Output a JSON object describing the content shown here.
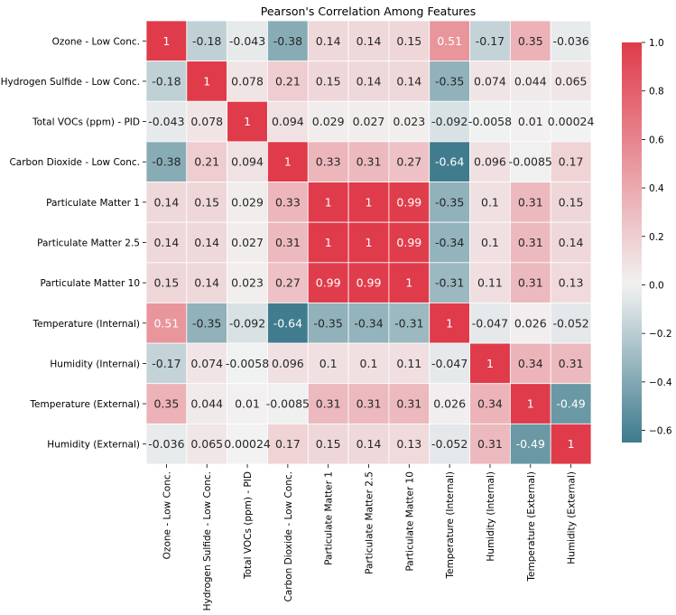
{
  "chart_data": {
    "type": "heatmap",
    "title": "Pearson's Correlation Among Features",
    "xlabel": "",
    "ylabel": "",
    "labels": [
      "Ozone - Low Conc.",
      "Hydrogen Sulfide - Low Conc.",
      "Total VOCs (ppm) - PID",
      "Carbon Dioxide - Low Conc.",
      "Particulate Matter 1",
      "Particulate Matter 2.5",
      "Particulate Matter 10",
      "Temperature (Internal)",
      "Humidity (Internal)",
      "Temperature (External)",
      "Humidity (External)"
    ],
    "matrix_labels": [
      [
        "1",
        "-0.18",
        "-0.043",
        "-0.38",
        "0.14",
        "0.14",
        "0.15",
        "0.51",
        "-0.17",
        "0.35",
        "-0.036"
      ],
      [
        "-0.18",
        "1",
        "0.078",
        "0.21",
        "0.15",
        "0.14",
        "0.14",
        "-0.35",
        "0.074",
        "0.044",
        "0.065"
      ],
      [
        "-0.043",
        "0.078",
        "1",
        "0.094",
        "0.029",
        "0.027",
        "0.023",
        "-0.092",
        "-0.0058",
        "0.01",
        "0.00024"
      ],
      [
        "-0.38",
        "0.21",
        "0.094",
        "1",
        "0.33",
        "0.31",
        "0.27",
        "-0.64",
        "0.096",
        "-0.0085",
        "0.17"
      ],
      [
        "0.14",
        "0.15",
        "0.029",
        "0.33",
        "1",
        "1",
        "0.99",
        "-0.35",
        "0.1",
        "0.31",
        "0.15"
      ],
      [
        "0.14",
        "0.14",
        "0.027",
        "0.31",
        "1",
        "1",
        "0.99",
        "-0.34",
        "0.1",
        "0.31",
        "0.14"
      ],
      [
        "0.15",
        "0.14",
        "0.023",
        "0.27",
        "0.99",
        "0.99",
        "1",
        "-0.31",
        "0.11",
        "0.31",
        "0.13"
      ],
      [
        "0.51",
        "-0.35",
        "-0.092",
        "-0.64",
        "-0.35",
        "-0.34",
        "-0.31",
        "1",
        "-0.047",
        "0.026",
        "-0.052"
      ],
      [
        "-0.17",
        "0.074",
        "-0.0058",
        "0.096",
        "0.1",
        "0.1",
        "0.11",
        "-0.047",
        "1",
        "0.34",
        "0.31"
      ],
      [
        "0.35",
        "0.044",
        "0.01",
        "-0.0085",
        "0.31",
        "0.31",
        "0.31",
        "0.026",
        "0.34",
        "1",
        "-0.49"
      ],
      [
        "-0.036",
        "0.065",
        "0.00024",
        "0.17",
        "0.15",
        "0.14",
        "0.13",
        "-0.052",
        "0.31",
        "-0.49",
        "1"
      ]
    ],
    "colorbar": {
      "range": [
        -0.65,
        1.0
      ],
      "ticks": [
        "1.0",
        "0.8",
        "0.6",
        "0.4",
        "0.2",
        "0.0",
        "−0.2",
        "−0.4",
        "−0.6"
      ],
      "tick_values": [
        1.0,
        0.8,
        0.6,
        0.4,
        0.2,
        0.0,
        -0.2,
        -0.4,
        -0.6
      ]
    },
    "colors": {
      "negative_end": "#3d7a8c",
      "center": "#f2f2f2",
      "positive_end": "#e03b4a",
      "grid_line": "#ffffff"
    },
    "grid": true,
    "cell_text_color_dark": "#262626",
    "cell_text_color_light": "#ffffff"
  }
}
